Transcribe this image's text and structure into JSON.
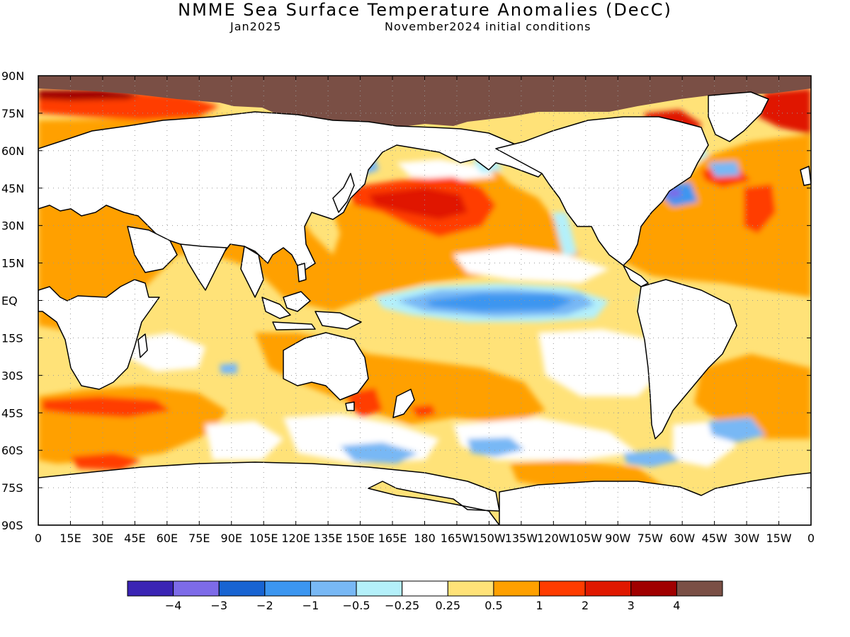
{
  "header": {
    "title": "NMME Sea Surface Temperature Anomalies (DecC)",
    "valid_month": "Jan2025",
    "initial_conditions": "November2024 initial conditions"
  },
  "map": {
    "lat_labels": [
      "90N",
      "75N",
      "60N",
      "45N",
      "30N",
      "15N",
      "EQ",
      "15S",
      "30S",
      "45S",
      "60S",
      "75S",
      "90S"
    ],
    "lon_labels": [
      "0",
      "15E",
      "30E",
      "45E",
      "60E",
      "75E",
      "90E",
      "105E",
      "120E",
      "135E",
      "150E",
      "165E",
      "180",
      "165W",
      "150W",
      "135W",
      "120W",
      "105W",
      "90W",
      "75W",
      "60W",
      "45W",
      "30W",
      "15W",
      "0"
    ],
    "land_color": "#ffffff",
    "sea_ice_color": "#7a4f45",
    "grid": "dotted"
  },
  "colorbar": {
    "colors": [
      "#3a24b4",
      "#7d6be8",
      "#1864d2",
      "#3c96f0",
      "#78b8f5",
      "#b4f0fa",
      "#ffffff",
      "#ffe278",
      "#ffa000",
      "#ff3c00",
      "#e01800",
      "#a00000",
      "#7a4f45"
    ],
    "labels": [
      "−4",
      "−3",
      "−2",
      "−1",
      "−0.5",
      "−0.25",
      "0.25",
      "0.5",
      "1",
      "2",
      "3",
      "4"
    ]
  }
}
